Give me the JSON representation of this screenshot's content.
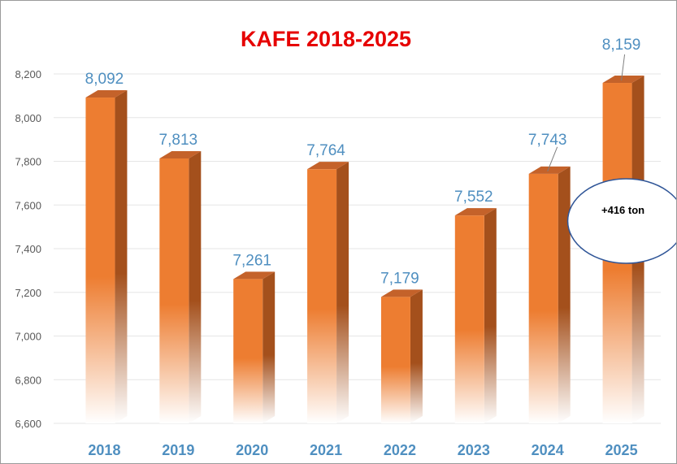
{
  "chart_data": {
    "type": "bar",
    "title": "KAFE 2018-2025",
    "categories": [
      "2018",
      "2019",
      "2020",
      "2021",
      "2022",
      "2023",
      "2024",
      "2025"
    ],
    "values": [
      8092,
      7813,
      7261,
      7764,
      7179,
      7552,
      7743,
      8159
    ],
    "value_labels": [
      "8,092",
      "7,813",
      "7,261",
      "7,764",
      "7,179",
      "7,552",
      "7,743",
      "8,159"
    ],
    "ylim": [
      6600,
      8200
    ],
    "yticks": [
      6600,
      6800,
      7000,
      7200,
      7400,
      7600,
      7800,
      8000,
      8200
    ],
    "ytick_labels": [
      "6,600",
      "6,800",
      "7,000",
      "7,200",
      "7,400",
      "7,600",
      "7,800",
      "8,000",
      "8,200"
    ],
    "grid": true,
    "bar_style": "3d-column",
    "callout": {
      "text": "+416 ton",
      "points_to": "2025"
    }
  },
  "colors": {
    "title": "#e60000",
    "bar_front": "#ed7d31",
    "bar_side": "#a4501c",
    "bar_top": "#c4622a",
    "data_label": "#4f8fc0",
    "x_tick": "#4f8fc0",
    "gridline": "#e6e6e6",
    "callout_border": "#2f5597"
  }
}
